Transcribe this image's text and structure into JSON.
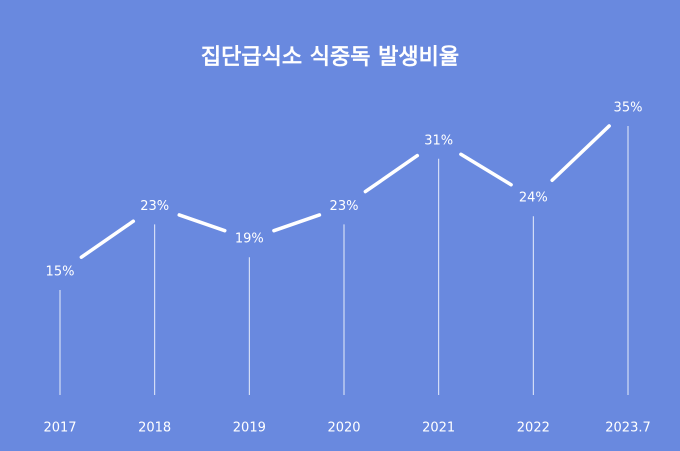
{
  "chart_data": {
    "type": "line",
    "title": "집단급식소 식중독 발생비율",
    "categories": [
      "2017",
      "2018",
      "2019",
      "2020",
      "2021",
      "2022",
      "2023.7"
    ],
    "values": [
      15,
      23,
      19,
      23,
      31,
      24,
      35
    ],
    "value_labels": [
      "15%",
      "23%",
      "19%",
      "23%",
      "31%",
      "24%",
      "35%"
    ],
    "color": "#ffffff",
    "background": "#6989df"
  }
}
